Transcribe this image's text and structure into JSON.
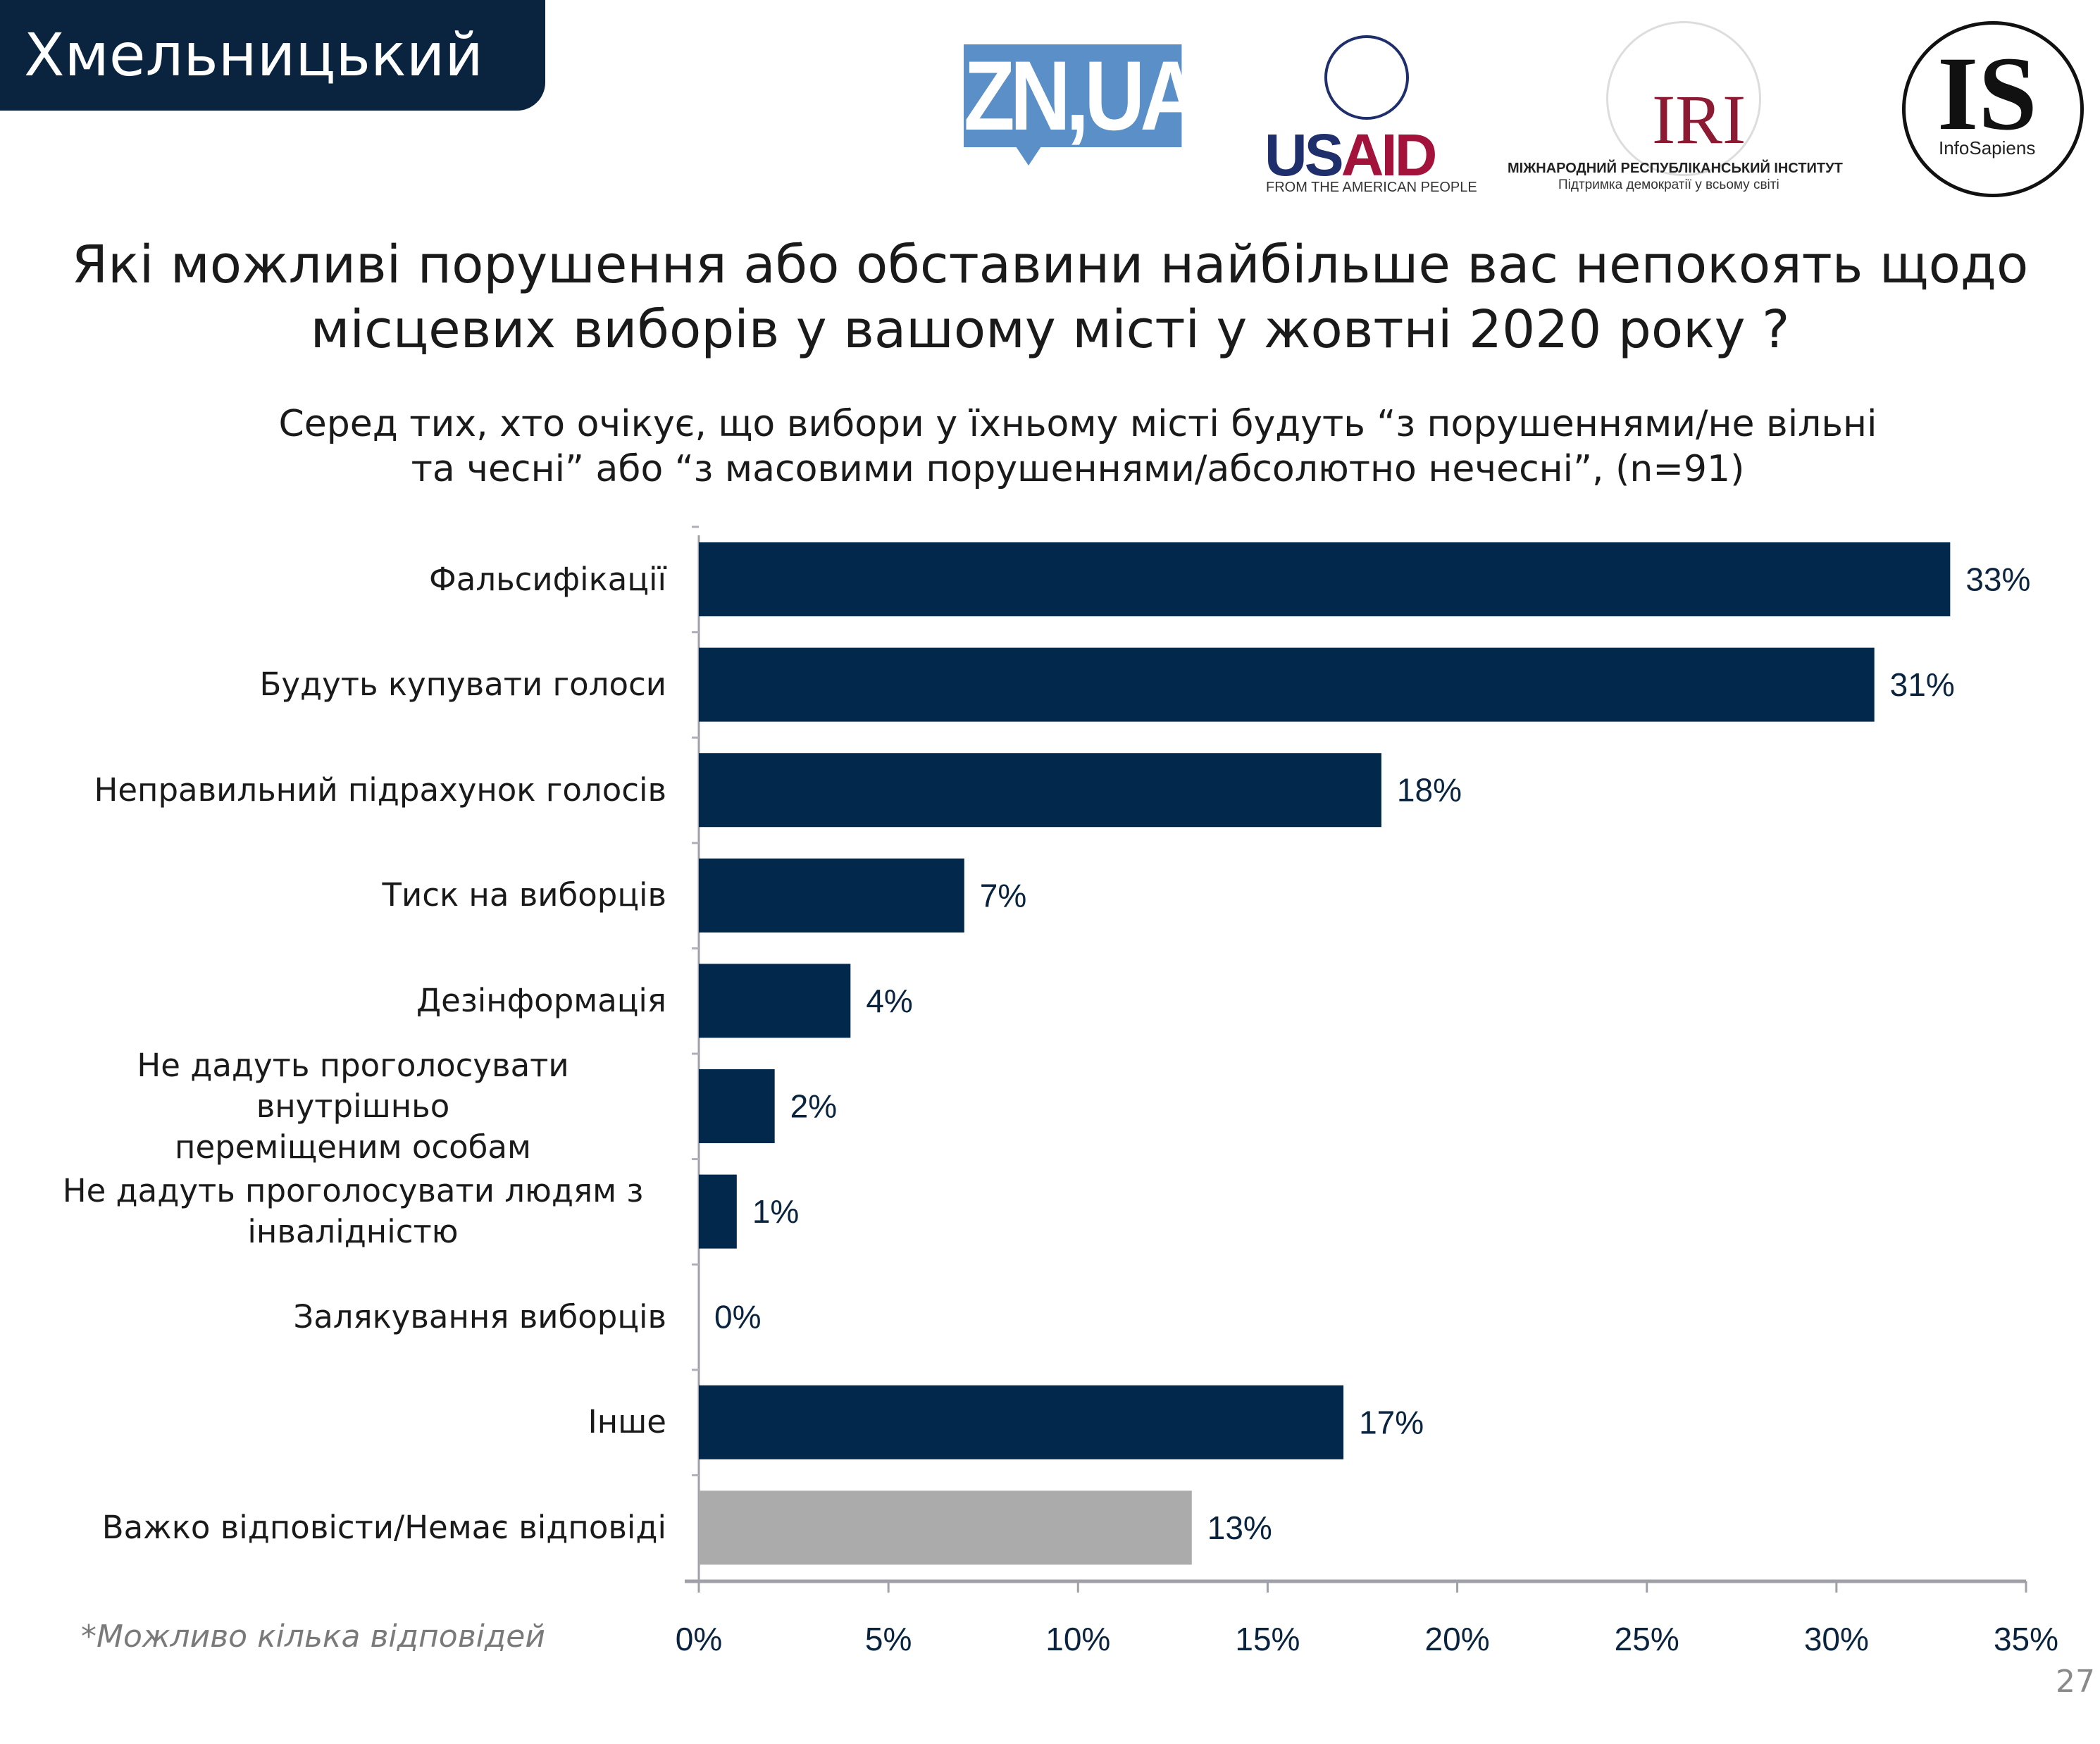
{
  "header": {
    "city": "Хмельницький"
  },
  "logos": {
    "zn": "ZN,UA",
    "usaid": {
      "part1": "US",
      "part2": "AID",
      "sub": "FROM THE AMERICAN PEOPLE"
    },
    "iri": {
      "mark": "IRI",
      "sub1": "МІЖНАРОДНИЙ РЕСПУБЛІКАНСЬКИЙ ІНСТИТУТ",
      "sub2": "Підтримка демократії у всьому світі"
    },
    "infosapiens": {
      "mark": "IS",
      "sub": "InfoSapiens"
    }
  },
  "title": {
    "line1": "Які можливі порушення або обставини найбільше вас непокоять щодо",
    "line2": "місцевих виборів у вашому місті у жовтні 2020 року ?"
  },
  "subtitle": {
    "line1": "Серед тих, хто очікує, що вибори у їхньому місті будуть “з порушеннями/не вільні",
    "line2": "та чесні” або “з масовими порушеннями/абсолютно нечесні”, (n=91)"
  },
  "footnote": "*Можливо кілька відповідей",
  "page_number": "27",
  "chart_data": {
    "type": "bar",
    "orientation": "horizontal",
    "categories": [
      "Фальсифікації",
      "Будуть купувати голоси",
      "Неправильний підрахунок голосів",
      "Тиск на виборців",
      "Дезінформація",
      "Не дадуть проголосувати внутрішньо переміщеним особам",
      "Не дадуть проголосувати людям з інвалідністю",
      "Залякування виборців",
      "Інше",
      "Важко відповісти/Немає відповіді"
    ],
    "category_lines": [
      [
        "Фальсифікації"
      ],
      [
        "Будуть купувати голоси"
      ],
      [
        "Неправильний підрахунок голосів"
      ],
      [
        "Тиск на виборців"
      ],
      [
        "Дезінформація"
      ],
      [
        "Не дадуть проголосувати внутрішньо",
        "переміщеним особам"
      ],
      [
        "Не дадуть проголосувати людям з",
        "інвалідністю"
      ],
      [
        "Залякування виборців"
      ],
      [
        "Інше"
      ],
      [
        "Важко відповісти/Немає відповіді"
      ]
    ],
    "values": [
      33,
      31,
      18,
      7,
      4,
      2,
      1,
      0,
      17,
      13
    ],
    "data_labels": [
      "33%",
      "31%",
      "18%",
      "7%",
      "4%",
      "2%",
      "1%",
      "0%",
      "17%",
      "13%"
    ],
    "bar_colors": [
      "#02284b",
      "#02284b",
      "#02284b",
      "#02284b",
      "#02284b",
      "#02284b",
      "#02284b",
      "#02284b",
      "#02284b",
      "#ababab"
    ],
    "xlim": [
      0,
      35
    ],
    "xticks": [
      "0%",
      "5%",
      "10%",
      "15%",
      "20%",
      "25%",
      "30%",
      "35%"
    ],
    "xtick_values": [
      0,
      5,
      10,
      15,
      20,
      25,
      30,
      35
    ],
    "grid": false,
    "colors": {
      "bar": "#02284b",
      "no_answer": "#ababab",
      "label_text": "#0a2440"
    }
  }
}
